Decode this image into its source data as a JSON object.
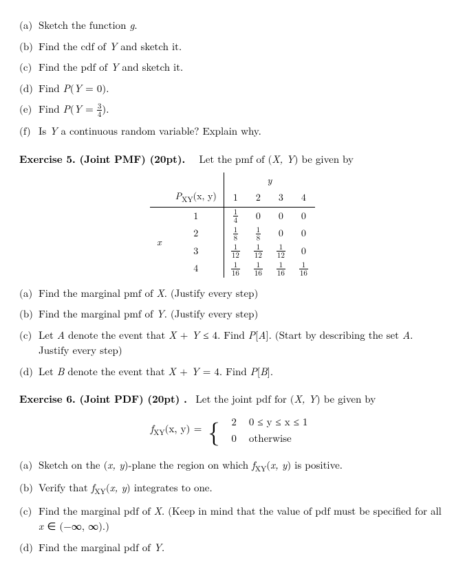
{
  "topList": {
    "a": {
      "label": "(a)",
      "text": "Sketch the function "
    },
    "b": {
      "label": "(b)",
      "text_pre": "Find the cdf of ",
      "text_post": " and sketch it."
    },
    "c": {
      "label": "(c)",
      "text_pre": "Find the pdf of ",
      "text_post": " and sketch it."
    },
    "d": {
      "label": "(d)",
      "text_pre": "Find "
    },
    "e": {
      "label": "(e)",
      "text_pre": "Find "
    },
    "f": {
      "label": "(f)",
      "text_pre": "Is ",
      "text_post": " a continuous random variable? Explain why."
    }
  },
  "ex5": {
    "heading_bold": "Exercise 5. (Joint PMF) (20pt).",
    "heading_rest": "Let the pmf of ",
    "heading_end": " be given by",
    "table": {
      "ylabel": "y",
      "xlabel": "x",
      "fn": "P",
      "fn_sub": "XY",
      "args": "(x, y)",
      "ycols": [
        "1",
        "2",
        "3",
        "4"
      ],
      "xrows": [
        "1",
        "2",
        "3",
        "4"
      ],
      "cells": [
        [
          {
            "n": "1",
            "d": "4"
          },
          "0",
          "0",
          "0"
        ],
        [
          {
            "n": "1",
            "d": "8"
          },
          {
            "n": "1",
            "d": "8"
          },
          "0",
          "0"
        ],
        [
          {
            "n": "1",
            "d": "12"
          },
          {
            "n": "1",
            "d": "12"
          },
          {
            "n": "1",
            "d": "12"
          },
          "0"
        ],
        [
          {
            "n": "1",
            "d": "16"
          },
          {
            "n": "1",
            "d": "16"
          },
          {
            "n": "1",
            "d": "16"
          },
          {
            "n": "1",
            "d": "16"
          }
        ]
      ]
    },
    "a": {
      "label": "(a)",
      "text": "Find the marginal pmf of ",
      "tail": ". (Justify every step)"
    },
    "b": {
      "label": "(b)",
      "text": "Find the marginal pmf of ",
      "tail": ". (Justify every step)"
    },
    "c": {
      "label": "(c)",
      "text_pre": "Let ",
      "text_mid": " denote the event that ",
      "text_find": ". Find ",
      "text_tail": ". (Start by describing the set ",
      "text_end": ". Justify every step)"
    },
    "d": {
      "label": "(d)",
      "text_pre": "Let ",
      "text_mid": " denote the event that ",
      "text_find": ". Find ",
      "text_end": "."
    }
  },
  "ex6": {
    "heading_bold": "Exercise 6. (Joint PDF) (20pt) .",
    "heading_rest": "Let the joint pdf for ",
    "heading_end": " be given by",
    "eq": {
      "f": "f",
      "sub": "XY",
      "args": "(x, y)",
      "case1_val": "2",
      "case1_cond": "0 ≤ y ≤ x ≤ 1",
      "case2_val": "0",
      "case2_cond": "otherwise"
    },
    "a": {
      "label": "(a)",
      "text_pre": "Sketch on the ",
      "text_mid": "-plane the region on which ",
      "text_end": " is positive."
    },
    "b": {
      "label": "(b)",
      "text_pre": "Verify that ",
      "text_end": " integrates to one."
    },
    "c": {
      "label": "(c)",
      "text_pre": "Find the marginal pdf of ",
      "text_mid": ". (Keep in mind that the value of pdf must be specified for all ",
      "text_end": ".)"
    },
    "d": {
      "label": "(d)",
      "text_pre": "Find the marginal pdf of ",
      "text_end": "."
    }
  }
}
